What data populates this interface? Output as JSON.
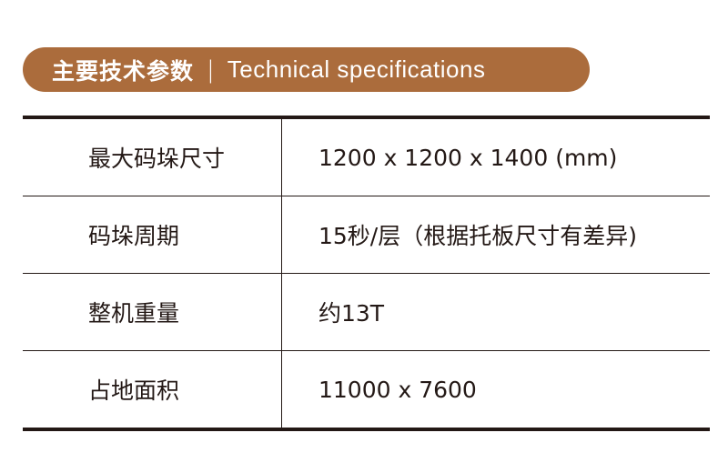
{
  "header": {
    "title_cn": "主要技术参数",
    "separator": "|",
    "title_en": "Technical specifications",
    "color": "#ab6c3c"
  },
  "rows": [
    {
      "label": "最大码垛尺寸",
      "value": "1200 x 1200 x 1400 (mm)"
    },
    {
      "label": "码垛周期",
      "value": "15秒/层（根据托板尺寸有差异)"
    },
    {
      "label": "整机重量",
      "value": "约13T"
    },
    {
      "label": "占地面积",
      "value": "11000 x 7600"
    }
  ]
}
